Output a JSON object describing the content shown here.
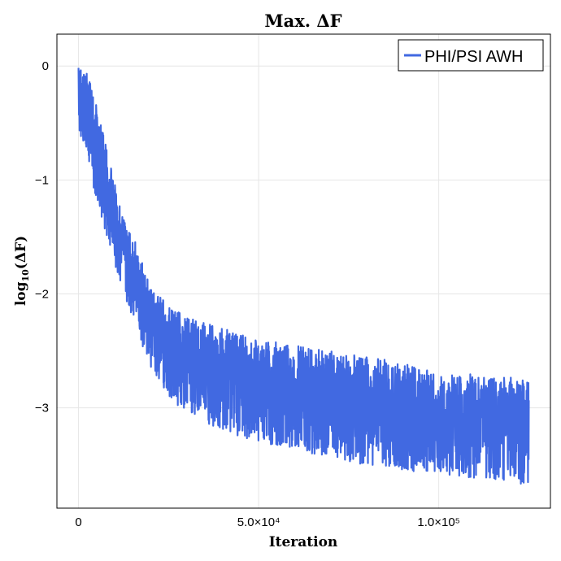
{
  "chart_data": {
    "type": "line",
    "title": "Max. ΔF",
    "xlabel": "Iteration",
    "ylabel_base": "log",
    "ylabel_sub": "10",
    "ylabel_arg": "(ΔF)",
    "xlim": [
      -6000,
      131000
    ],
    "ylim": [
      -3.88,
      0.28
    ],
    "grid": true,
    "legend_position": "top-right",
    "x_ticks": [
      {
        "value": 0,
        "label": "0"
      },
      {
        "value": 50000,
        "label": "5.0×10⁴"
      },
      {
        "value": 100000,
        "label": "1.0×10⁵"
      }
    ],
    "y_ticks": [
      {
        "value": 0,
        "label": "0"
      },
      {
        "value": -1,
        "label": "−1"
      },
      {
        "value": -2,
        "label": "−2"
      },
      {
        "value": -3,
        "label": "−3"
      }
    ],
    "series": [
      {
        "name": "PHI/PSI AWH",
        "color": "#4169e1",
        "x_start": 0,
        "x_end": 125000,
        "points": 2200,
        "center_curve": [
          [
            0,
            -0.3
          ],
          [
            2000,
            -0.45
          ],
          [
            5000,
            -0.75
          ],
          [
            8000,
            -1.1
          ],
          [
            12000,
            -1.5
          ],
          [
            16000,
            -1.85
          ],
          [
            20000,
            -2.15
          ],
          [
            25000,
            -2.42
          ],
          [
            30000,
            -2.55
          ],
          [
            40000,
            -2.7
          ],
          [
            50000,
            -2.8
          ],
          [
            60000,
            -2.88
          ],
          [
            70000,
            -2.95
          ],
          [
            80000,
            -3.0
          ],
          [
            90000,
            -3.05
          ],
          [
            100000,
            -3.1
          ],
          [
            110000,
            -3.12
          ],
          [
            125000,
            -3.15
          ]
        ],
        "envelope_top": [
          [
            0,
            0.05
          ],
          [
            2000,
            0.0
          ],
          [
            5000,
            -0.35
          ],
          [
            8000,
            -0.75
          ],
          [
            12000,
            -1.3
          ],
          [
            16000,
            -1.55
          ],
          [
            20000,
            -1.95
          ],
          [
            25000,
            -2.1
          ],
          [
            30000,
            -2.2
          ],
          [
            40000,
            -2.3
          ],
          [
            50000,
            -2.4
          ],
          [
            60000,
            -2.45
          ],
          [
            70000,
            -2.5
          ],
          [
            80000,
            -2.55
          ],
          [
            90000,
            -2.6
          ],
          [
            100000,
            -2.7
          ],
          [
            110000,
            -2.7
          ],
          [
            125000,
            -2.75
          ]
        ],
        "envelope_bottom": [
          [
            0,
            -0.6
          ],
          [
            2000,
            -0.7
          ],
          [
            5000,
            -1.2
          ],
          [
            8000,
            -1.55
          ],
          [
            12000,
            -1.95
          ],
          [
            16000,
            -2.3
          ],
          [
            20000,
            -2.65
          ],
          [
            25000,
            -2.9
          ],
          [
            30000,
            -3.05
          ],
          [
            40000,
            -3.2
          ],
          [
            50000,
            -3.3
          ],
          [
            60000,
            -3.38
          ],
          [
            70000,
            -3.45
          ],
          [
            80000,
            -3.5
          ],
          [
            90000,
            -3.55
          ],
          [
            100000,
            -3.58
          ],
          [
            110000,
            -3.62
          ],
          [
            125000,
            -3.68
          ]
        ]
      }
    ]
  }
}
